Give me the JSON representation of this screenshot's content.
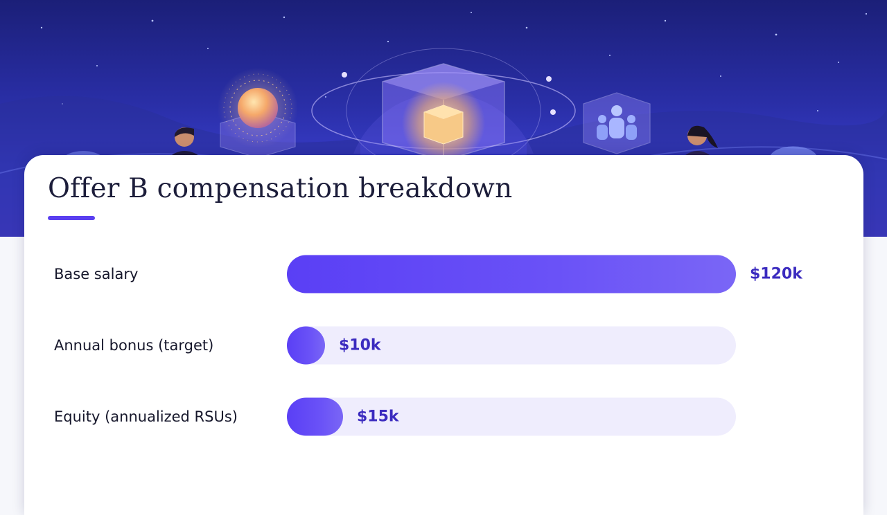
{
  "chart_data": {
    "type": "bar",
    "orientation": "horizontal",
    "title": "Offer B compensation breakdown",
    "categories": [
      "Base salary",
      "Annual bonus (target)",
      "Equity (annualized RSUs)"
    ],
    "values": [
      120,
      10,
      15
    ],
    "value_labels": [
      "$120k",
      "$10k",
      "$15k"
    ],
    "xlim": [
      0,
      120
    ],
    "grid": false,
    "legend": "none"
  },
  "colors": {
    "bar": "#5a3ff5",
    "track": "#efedfd",
    "value_text": "#3b2bbf",
    "accent": "#5a3ff0"
  },
  "hero": {
    "icons": [
      "glowing-orb-icon",
      "glass-cube-icon",
      "people-group-icon",
      "person-icon"
    ]
  }
}
